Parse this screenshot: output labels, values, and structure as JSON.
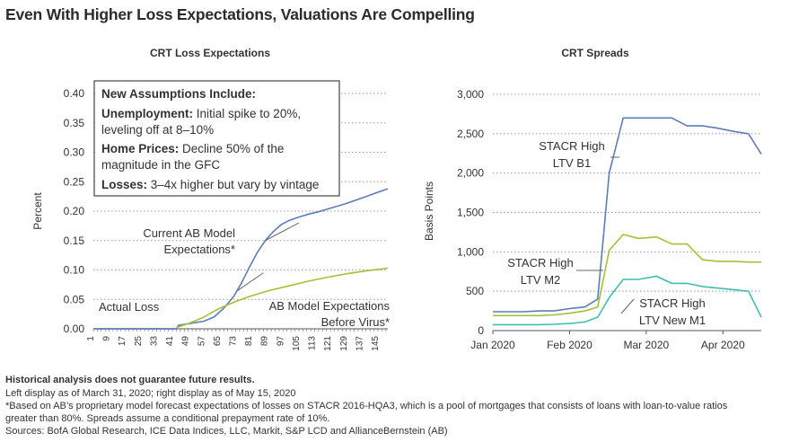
{
  "title": "Even With Higher Loss Expectations, Valuations Are Compelling",
  "colors": {
    "blue": "#5b7db8",
    "green": "#a3c137",
    "teal": "#3fbfb0",
    "grid": "#888888",
    "text": "#333333"
  },
  "chart_data": [
    {
      "type": "line",
      "title": "CRT Loss Expectations",
      "xlabel": "",
      "ylabel": "Percent",
      "xlim": [
        1,
        150
      ],
      "ylim": [
        0,
        0.4
      ],
      "yticks": [
        0,
        0.05,
        0.1,
        0.15,
        0.2,
        0.25,
        0.3,
        0.35,
        0.4
      ],
      "ytick_labels": [
        "0.00",
        "0.05",
        "0.10",
        "0.15",
        "0.20",
        "0.25",
        "0.30",
        "0.35",
        "0.40"
      ],
      "xticks": [
        1,
        9,
        17,
        25,
        33,
        41,
        49,
        57,
        65,
        73,
        81,
        89,
        97,
        105,
        113,
        121,
        129,
        137,
        145
      ],
      "xtick_labels": [
        "1",
        "9",
        "17",
        "25",
        "33",
        "41",
        "49",
        "57",
        "65",
        "73",
        "81",
        "89",
        "97",
        "105",
        "113",
        "121",
        "129",
        "137",
        "145"
      ],
      "series": [
        {
          "name": "Current AB Model Expectations*",
          "color": "#5b7db8",
          "points": [
            [
              1,
              0
            ],
            [
              43,
              0
            ],
            [
              44,
              0.006
            ],
            [
              50,
              0.009
            ],
            [
              57,
              0.013
            ],
            [
              62,
              0.02
            ],
            [
              67,
              0.035
            ],
            [
              72,
              0.055
            ],
            [
              76,
              0.078
            ],
            [
              80,
              0.105
            ],
            [
              84,
              0.13
            ],
            [
              88,
              0.15
            ],
            [
              92,
              0.165
            ],
            [
              96,
              0.177
            ],
            [
              100,
              0.184
            ],
            [
              105,
              0.19
            ],
            [
              110,
              0.195
            ],
            [
              115,
              0.199
            ],
            [
              120,
              0.204
            ],
            [
              125,
              0.209
            ],
            [
              130,
              0.214
            ],
            [
              135,
              0.22
            ],
            [
              140,
              0.226
            ],
            [
              145,
              0.232
            ],
            [
              150,
              0.238
            ]
          ]
        },
        {
          "name": "AB Model Expectations Before Virus*",
          "color": "#a3c137",
          "points": [
            [
              43,
              0.002
            ],
            [
              50,
              0.01
            ],
            [
              57,
              0.02
            ],
            [
              62,
              0.03
            ],
            [
              67,
              0.038
            ],
            [
              72,
              0.045
            ],
            [
              80,
              0.055
            ],
            [
              90,
              0.065
            ],
            [
              100,
              0.073
            ],
            [
              110,
              0.081
            ],
            [
              120,
              0.088
            ],
            [
              130,
              0.094
            ],
            [
              140,
              0.099
            ],
            [
              150,
              0.103
            ]
          ]
        },
        {
          "name": "Actual Loss",
          "color": "#5b7db8",
          "points": [
            [
              1,
              0
            ],
            [
              43,
              0
            ]
          ]
        }
      ],
      "annotations": {
        "current_label": [
          "Current AB Model",
          "Expectations*"
        ],
        "before_label": [
          "AB Model Expectations",
          "Before Virus*"
        ],
        "actual_label": "Actual Loss",
        "box": {
          "heading": "New Assumptions Include:",
          "unemployment_bold": "Unemployment:",
          "unemployment_text_1": "Initial spike to 20%,",
          "unemployment_text_2": "leveling off at 8–10%",
          "home_bold": "Home Prices:",
          "home_text_1": "Decline 50% of the",
          "home_text_2": "magnitude in the GFC",
          "losses_bold": "Losses:",
          "losses_text": "3–4x higher but vary by vintage"
        }
      }
    },
    {
      "type": "line",
      "title": "CRT Spreads",
      "xlabel": "",
      "ylabel": "Basis Points",
      "xlim": [
        0,
        10.5
      ],
      "ylim": [
        0,
        3000
      ],
      "yticks": [
        0,
        500,
        1000,
        1500,
        2000,
        2500,
        3000
      ],
      "ytick_labels": [
        "0",
        "500",
        "1,000",
        "1,500",
        "2,000",
        "2,500",
        "3,000"
      ],
      "xticks": [
        0,
        3,
        6,
        9
      ],
      "xtick_labels": [
        "Jan 2020",
        "Feb 2020",
        "Mar 2020",
        "Apr 2020"
      ],
      "series": [
        {
          "name": "STACR High LTV B1",
          "color": "#5b7db8",
          "x": [
            0,
            0.6,
            1.2,
            1.8,
            2.4,
            3.0,
            3.6,
            4.1,
            4.55,
            5.1,
            5.7,
            6.4,
            7.0,
            7.6,
            8.2,
            8.8,
            9.4,
            10.0,
            10.5
          ],
          "y": [
            240,
            240,
            240,
            250,
            250,
            280,
            300,
            400,
            2000,
            2700,
            2700,
            2700,
            2700,
            2600,
            2600,
            2570,
            2530,
            2500,
            2240
          ]
        },
        {
          "name": "STACR High LTV M2",
          "color": "#a3c137",
          "x": [
            0,
            0.6,
            1.2,
            1.8,
            2.4,
            3.0,
            3.6,
            4.1,
            4.55,
            5.1,
            5.7,
            6.4,
            7.0,
            7.6,
            8.2,
            8.8,
            9.4,
            10.0,
            10.5
          ],
          "y": [
            190,
            190,
            190,
            190,
            200,
            220,
            250,
            300,
            1020,
            1220,
            1170,
            1190,
            1100,
            1100,
            900,
            880,
            880,
            870,
            870
          ]
        },
        {
          "name": "STACR High LTV New M1",
          "color": "#3fbfb0",
          "x": [
            0,
            0.6,
            1.2,
            1.8,
            2.4,
            3.0,
            3.6,
            4.1,
            4.55,
            5.1,
            5.7,
            6.4,
            7.0,
            7.6,
            8.2,
            8.8,
            9.4,
            10.0,
            10.5
          ],
          "y": [
            75,
            75,
            75,
            75,
            80,
            90,
            110,
            170,
            420,
            650,
            650,
            690,
            600,
            600,
            560,
            540,
            520,
            500,
            170
          ]
        }
      ],
      "annotations": {
        "b1_label": [
          "STACR High",
          "LTV B1"
        ],
        "m2_label": [
          "STACR High",
          "LTV M2"
        ],
        "m1_label": [
          "STACR High",
          "LTV New M1"
        ]
      }
    }
  ],
  "footnotes": {
    "line1": "Historical analysis does not guarantee future results.",
    "line2": "Left display as of March 31, 2020; right display as of May 15, 2020",
    "line3": "*Based on AB’s proprietary model forecast expectations of losses on STACR 2016-HQA3, which is a pool of mortgages that consists of loans with loan-to-value ratios",
    "line4": "greater than 80%. Spreads assume a conditional prepayment rate of 10%.",
    "line5": "Sources: BofA Global Research, ICE Data Indices, LLC, Markit, S&P LCD and AllianceBernstein (AB)"
  }
}
